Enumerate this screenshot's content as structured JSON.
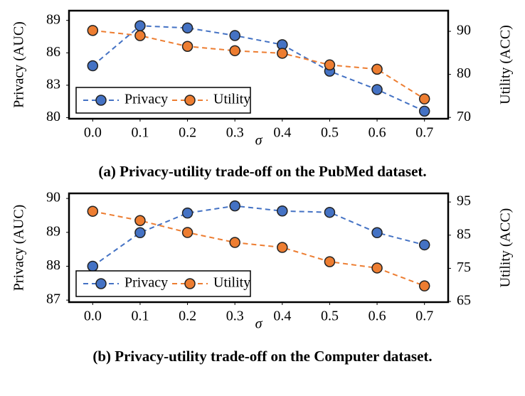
{
  "chart_data": [
    {
      "type": "line",
      "caption": "(a) Privacy-utility trade-off on the PubMed dataset.",
      "xlabel": "σ",
      "ylabel": "Privacy (AUC)",
      "y2label": "Utility (ACC)",
      "x": [
        0,
        0.1,
        0.2,
        0.3,
        0.4,
        0.5,
        0.6,
        0.7
      ],
      "xlim": [
        -0.05,
        0.75
      ],
      "xticks": [
        {
          "value": 0,
          "label": "0.0"
        },
        0.1,
        0.2,
        0.3,
        0.4,
        0.5,
        0.6,
        0.7
      ],
      "ylim": [
        79.9,
        89.9
      ],
      "yticks": [
        80,
        83,
        86,
        89
      ],
      "y2lim": [
        69.7,
        94.8
      ],
      "y2ticks": [
        70,
        80,
        90
      ],
      "legend": "lower left",
      "grid": false,
      "series": [
        {
          "name": "Privacy",
          "color": "#4472c4",
          "values": [
            84.8,
            88.5,
            88.3,
            87.6,
            86.75,
            84.3,
            82.6,
            80.6
          ]
        },
        {
          "name": "Utility",
          "color": "#ed7d31",
          "axis": "y2",
          "values": [
            90.2,
            89.0,
            86.5,
            85.5,
            84.9,
            82.2,
            81.2,
            74.3
          ]
        }
      ]
    },
    {
      "type": "line",
      "caption": "(b) Privacy-utility trade-off on the Computer dataset.",
      "xlabel": "σ",
      "ylabel": "Privacy (AUC)",
      "y2label": "Utility (ACC)",
      "x": [
        0,
        0.1,
        0.2,
        0.3,
        0.4,
        0.5,
        0.6,
        0.7
      ],
      "xlim": [
        -0.05,
        0.75
      ],
      "xticks": [
        {
          "value": 0,
          "label": "0.0"
        },
        0.1,
        0.2,
        0.3,
        0.4,
        0.5,
        0.6,
        0.7
      ],
      "ylim": [
        86.94,
        90.15
      ],
      "yticks": [
        87,
        88,
        89,
        90
      ],
      "y2lim": [
        64.8,
        97.6
      ],
      "y2ticks": [
        65,
        75,
        85,
        95
      ],
      "legend": "lower left",
      "grid": false,
      "series": [
        {
          "name": "Privacy",
          "color": "#4472c4",
          "values": [
            88.0,
            88.99,
            89.57,
            89.78,
            89.63,
            89.59,
            88.99,
            88.63
          ]
        },
        {
          "name": "Utility",
          "color": "#ed7d31",
          "axis": "y2",
          "values": [
            92.2,
            89.4,
            85.8,
            82.8,
            81.3,
            77.0,
            75.1,
            69.7
          ]
        }
      ]
    }
  ]
}
